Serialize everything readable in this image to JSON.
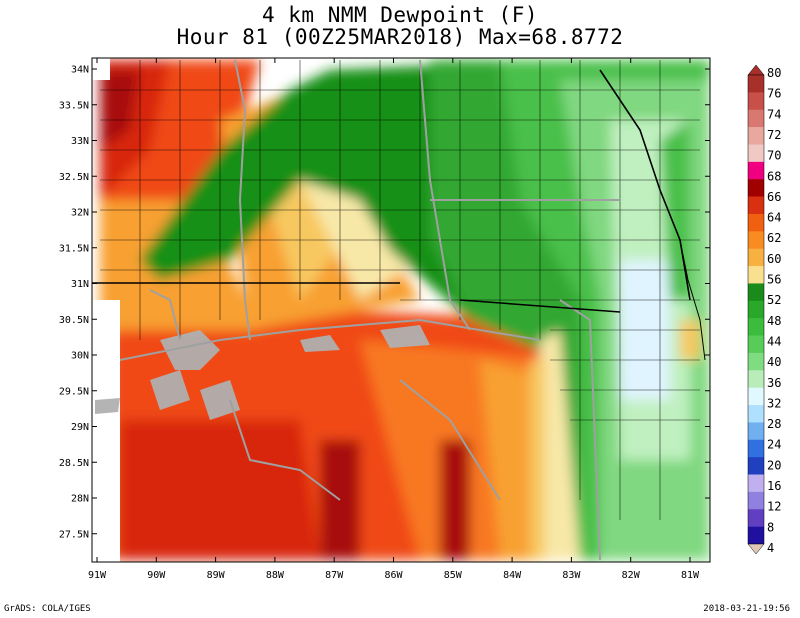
{
  "title_line1": "4 km NMM Dewpoint (F)",
  "title_line2": "Hour 81 (00Z25MAR2018) Max=68.8772",
  "footer_left": "GrADS: COLA/IGES",
  "footer_right": "2018-03-21-19:56",
  "lat_labels": [
    "34N",
    "33.5N",
    "33N",
    "32.5N",
    "32N",
    "31.5N",
    "31N",
    "30.5N",
    "30N",
    "29.5N",
    "29N",
    "28.5N",
    "28N",
    "27.5N"
  ],
  "lon_labels": [
    "91W",
    "90W",
    "89W",
    "88W",
    "87W",
    "86W",
    "85W",
    "84W",
    "83W",
    "82W",
    "81W"
  ],
  "colorbar": {
    "labels": [
      "80",
      "76",
      "74",
      "72",
      "70",
      "68",
      "66",
      "64",
      "62",
      "60",
      "56",
      "52",
      "48",
      "44",
      "40",
      "36",
      "32",
      "28",
      "24",
      "20",
      "16",
      "12",
      "8",
      "4"
    ],
    "colors": [
      "#a8302a",
      "#c85048",
      "#d87870",
      "#e8a8a0",
      "#f0c8c4",
      "#f00080",
      "#a00000",
      "#d83010",
      "#f06010",
      "#f88c20",
      "#f8b040",
      "#f8e090",
      "#1a8a1a",
      "#2aa82a",
      "#3cbc3c",
      "#58cc58",
      "#80dc80",
      "#b8ecb8",
      "#e0f8ff",
      "#b0e0ff",
      "#70b0f0",
      "#3070e0",
      "#2040c0",
      "#c0b0f0",
      "#9080e0",
      "#6040c0",
      "#2010a0"
    ],
    "top_arrow_color": "#a8302a",
    "bottom_arrow_color": "#e0c8b8"
  },
  "palette": {
    "dark_red": "#a81010",
    "red": "#d82810",
    "red_orange": "#f04818",
    "orange": "#f87820",
    "light_orange": "#f8a030",
    "tan": "#f8c860",
    "pale_yellow": "#f8e8a8",
    "dark_green": "#189018",
    "green": "#30a830",
    "mid_green": "#48c048",
    "light_green": "#80d880",
    "pale_green": "#c0f0c0",
    "pale_blue": "#e0f4ff",
    "water_gray": "#b0b0b0",
    "frame": "#000000"
  }
}
